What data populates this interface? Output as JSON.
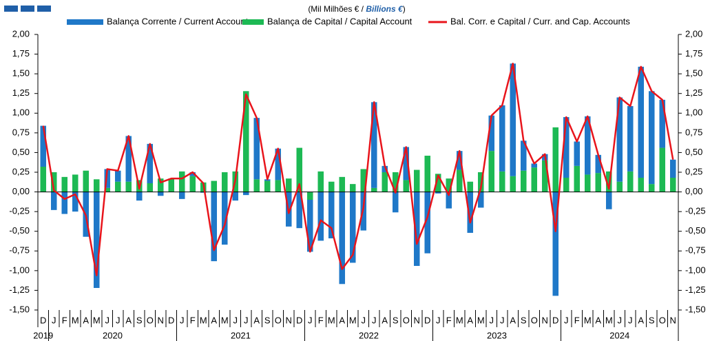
{
  "chart_data": {
    "type": "bar-line",
    "subtitle": {
      "prefix": "(Mil Milhões  € / ",
      "emphasis": "Billions €",
      "suffix": ")"
    },
    "categories": [
      "D",
      "J",
      "F",
      "M",
      "A",
      "M",
      "J",
      "J",
      "A",
      "S",
      "O",
      "N",
      "D",
      "J",
      "F",
      "M",
      "A",
      "M",
      "J",
      "J",
      "A",
      "S",
      "O",
      "N",
      "D",
      "J",
      "F",
      "M",
      "A",
      "M",
      "J",
      "J",
      "A",
      "S",
      "O",
      "N",
      "D",
      "J",
      "F",
      "M",
      "A",
      "M",
      "J",
      "J",
      "A",
      "S",
      "O",
      "N",
      "D",
      "J",
      "F",
      "M",
      "A",
      "M",
      "J",
      "J",
      "A",
      "S",
      "O",
      "N"
    ],
    "years": [
      "2019",
      "2020",
      "2021",
      "2022",
      "2023",
      "2024"
    ],
    "series": [
      {
        "name": "Balança Corrente / Current Account",
        "color": "#1f78c8",
        "kind": "bar",
        "values": [
          0.52,
          -0.23,
          -0.28,
          -0.25,
          -0.57,
          -1.22,
          0.24,
          0.14,
          0.58,
          -0.11,
          0.5,
          -0.05,
          0.0,
          -0.09,
          0.05,
          -0.01,
          -0.88,
          -0.67,
          -0.11,
          -0.04,
          0.78,
          0.02,
          0.4,
          -0.44,
          -0.46,
          -0.66,
          -0.62,
          -0.59,
          -1.17,
          -0.9,
          -0.49,
          1.09,
          0.08,
          -0.26,
          0.42,
          -0.94,
          -0.78,
          -0.02,
          -0.21,
          0.24,
          -0.52,
          -0.2,
          0.45,
          0.84,
          1.43,
          0.38,
          0.05,
          0.08,
          -1.32,
          0.77,
          0.31,
          0.74,
          0.23,
          -0.22,
          1.07,
          0.83,
          1.41,
          1.18,
          0.61,
          0.23
        ]
      },
      {
        "name": "Balança de Capital / Capital Account",
        "color": "#1db954",
        "kind": "bar",
        "values": [
          0.32,
          0.25,
          0.19,
          0.22,
          0.27,
          0.16,
          0.05,
          0.13,
          0.13,
          0.15,
          0.11,
          0.17,
          0.17,
          0.26,
          0.2,
          0.12,
          0.14,
          0.25,
          0.26,
          1.28,
          0.16,
          0.14,
          0.15,
          0.17,
          0.56,
          -0.1,
          0.26,
          0.13,
          0.19,
          0.1,
          0.29,
          0.05,
          0.25,
          0.25,
          0.15,
          0.28,
          0.46,
          0.23,
          0.17,
          0.28,
          0.13,
          0.25,
          0.52,
          0.26,
          0.2,
          0.27,
          0.31,
          0.4,
          0.82,
          0.18,
          0.33,
          0.22,
          0.24,
          0.26,
          0.13,
          0.26,
          0.18,
          0.1,
          0.56,
          0.18
        ]
      },
      {
        "name": "Bal. Corr. e Capital / Curr. and Cap. Accounts",
        "color": "#e8141b",
        "kind": "line",
        "values": [
          0.84,
          0.02,
          -0.09,
          -0.03,
          -0.3,
          -1.06,
          0.29,
          0.27,
          0.71,
          0.04,
          0.61,
          0.12,
          0.17,
          0.17,
          0.25,
          0.11,
          -0.74,
          -0.42,
          0.15,
          1.24,
          0.94,
          0.16,
          0.55,
          -0.27,
          0.1,
          -0.76,
          -0.36,
          -0.46,
          -0.98,
          -0.8,
          -0.2,
          1.14,
          0.33,
          -0.01,
          0.57,
          -0.66,
          -0.32,
          0.21,
          -0.04,
          0.52,
          -0.39,
          0.05,
          0.97,
          1.1,
          1.63,
          0.65,
          0.36,
          0.48,
          -0.5,
          0.95,
          0.64,
          0.96,
          0.47,
          0.04,
          1.2,
          1.09,
          1.59,
          1.28,
          1.17,
          0.41
        ]
      }
    ],
    "ylim": [
      -1.5,
      2.0
    ],
    "yticks": [
      {
        "value": 2.0,
        "label": "2,00"
      },
      {
        "value": 1.75,
        "label": "1,75"
      },
      {
        "value": 1.5,
        "label": "1,50"
      },
      {
        "value": 1.25,
        "label": "1,25"
      },
      {
        "value": 1.0,
        "label": "1,00"
      },
      {
        "value": 0.75,
        "label": "0,75"
      },
      {
        "value": 0.5,
        "label": "0,50"
      },
      {
        "value": 0.25,
        "label": "0,25"
      },
      {
        "value": 0,
        "label": "0,00"
      },
      {
        "value": -0.25,
        "label": "-0,25"
      },
      {
        "value": -0.5,
        "label": "-0,50"
      },
      {
        "value": -0.75,
        "label": "-0,75"
      },
      {
        "value": -1.0,
        "label": "-1,00"
      },
      {
        "value": -1.25,
        "label": "-1,25"
      },
      {
        "value": -1.5,
        "label": "-1,50"
      }
    ],
    "y2lim": [
      -1.5,
      2.0
    ],
    "y2ticks": [
      {
        "value": 2.0,
        "label": "2,00"
      },
      {
        "value": 1.75,
        "label": "1,75"
      },
      {
        "value": 1.5,
        "label": "1,50"
      },
      {
        "value": 1.25,
        "label": "1,25"
      },
      {
        "value": 1.0,
        "label": "1,00"
      },
      {
        "value": 0.75,
        "label": "0,75"
      },
      {
        "value": 0.5,
        "label": "0,50"
      },
      {
        "value": 0.25,
        "label": "0,25"
      },
      {
        "value": 0,
        "label": "0,00"
      },
      {
        "value": -0.25,
        "label": "-0,25"
      },
      {
        "value": -0.5,
        "label": "-0,50"
      },
      {
        "value": -0.75,
        "label": "-0,75"
      },
      {
        "value": -1.0,
        "label": "-1,00"
      },
      {
        "value": -1.25,
        "label": "-1,25"
      },
      {
        "value": -1.5,
        "label": "-1,50"
      }
    ]
  }
}
